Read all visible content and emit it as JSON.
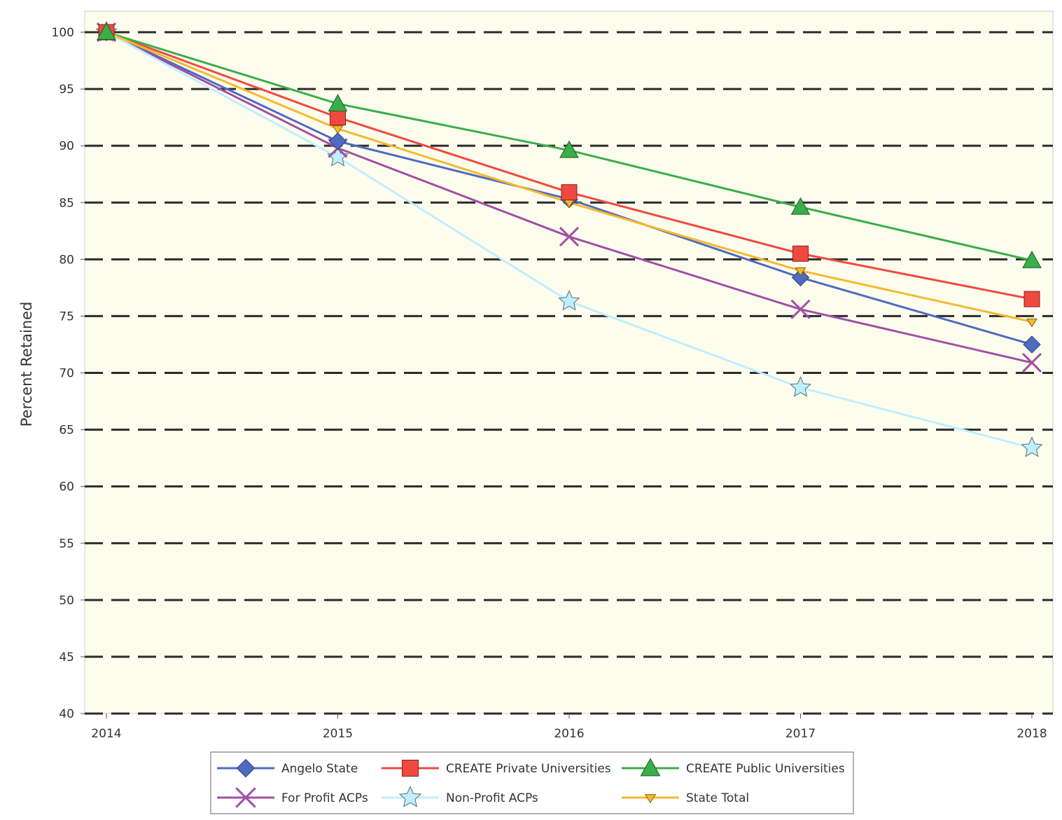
{
  "chart_data": {
    "type": "line",
    "title": "",
    "xlabel": "",
    "ylabel": "Percent Retained",
    "x": [
      "2014",
      "2015",
      "2016",
      "2017",
      "2018"
    ],
    "ylim": [
      40,
      100
    ],
    "yticks": [
      40,
      45,
      50,
      55,
      60,
      65,
      70,
      75,
      80,
      85,
      90,
      95,
      100
    ],
    "grid": "horizontal dashed",
    "legend_position": "bottom",
    "series": [
      {
        "name": "Angelo State",
        "values": [
          100,
          90.4,
          85.3,
          78.4,
          72.5
        ],
        "color": "#4f6bbf",
        "marker": "diamond"
      },
      {
        "name": "CREATE Private Universities",
        "values": [
          100,
          92.5,
          85.9,
          80.5,
          76.5
        ],
        "color": "#f04a40",
        "marker": "square"
      },
      {
        "name": "CREATE Public Universities",
        "values": [
          100,
          93.7,
          89.6,
          84.6,
          79.9
        ],
        "color": "#3aae48",
        "marker": "triangle"
      },
      {
        "name": "For Profit ACPs",
        "values": [
          100,
          89.8,
          82.0,
          75.6,
          70.9
        ],
        "color": "#a14fa6",
        "marker": "x"
      },
      {
        "name": "Non-Profit ACPs",
        "values": [
          100,
          89.0,
          76.3,
          68.7,
          63.4
        ],
        "color": "#bfefff",
        "marker": "star"
      },
      {
        "name": "State Total",
        "values": [
          100,
          91.5,
          85.0,
          79.0,
          74.5
        ],
        "color": "#f5b92e",
        "marker": "down-triangle"
      }
    ],
    "background": "#fdfdee"
  }
}
